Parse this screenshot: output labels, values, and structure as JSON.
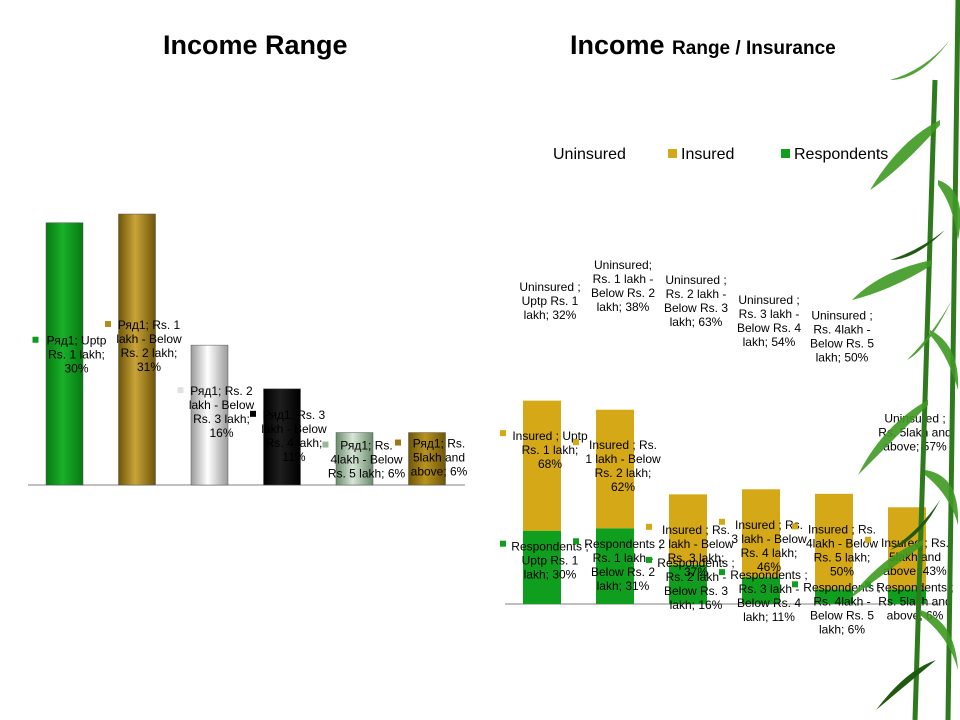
{
  "left_title": "Income Range",
  "right_title_main": "Income",
  "right_title_sub": "Range / Insurance",
  "colors": {
    "green": "#0e9a1c",
    "gold": "#b08d1a",
    "silver": "#d4d4d4",
    "black": "#000000",
    "sage": "#9bb59b",
    "brown": "#9b7a16",
    "uninsured": "#ffffff",
    "insured": "#d4a817",
    "respondents": "#109e1e"
  },
  "legend": [
    {
      "label": "Uninsured",
      "color": "#ffffff"
    },
    {
      "label": "Insured",
      "color": "#d4a817"
    },
    {
      "label": "Respondents",
      "color": "#109e1e"
    }
  ],
  "chart_data": [
    {
      "type": "bar",
      "title": "Income Range",
      "categories": [
        "Uptp Rs. 1 lakh",
        "Rs. 1 lakh - Below Rs. 2 lakh",
        "Rs. 2 lakh - Below Rs. 3 lakh",
        "Rs. 3 lakh - Below Rs. 4 lakh",
        "Rs. 4lakh - Below Rs. 5 lakh",
        "Rs. 5lakh and above"
      ],
      "values": [
        30,
        31,
        16,
        11,
        6,
        6
      ],
      "series": [
        {
          "name": "Ряд1",
          "values": [
            30,
            31,
            16,
            11,
            6,
            6
          ]
        }
      ],
      "data_labels": [
        [
          "Ряд1; Uptp",
          "Rs. 1 lakh;",
          "30%"
        ],
        [
          "Ряд1; Rs. 1",
          "lakh - Below",
          "Rs. 2 lakh;",
          "31%"
        ],
        [
          "Ряд1; Rs. 2",
          "lakh - Below",
          "Rs. 3 lakh;",
          "16%"
        ],
        [
          "Ряд1; Rs. 3",
          "lakh - Below",
          "Rs. 4 lakh;",
          "11%"
        ],
        [
          "Ряд1; Rs.",
          "4lakh - Below",
          "Rs. 5 lakh; 6%"
        ],
        [
          "Ряд1; Rs.",
          "5lakh and",
          "above; 6%"
        ]
      ],
      "ylim": [
        0,
        35
      ],
      "grid": false,
      "legend": "none"
    },
    {
      "type": "bar",
      "stacked": true,
      "title": "Income Range / Insurance",
      "categories": [
        "Uptp Rs. 1 lakh",
        "Rs. 1 lakh - Below Rs. 2 lakh",
        "Rs. 2 lakh - Below Rs. 3 lakh",
        "Rs. 3 lakh - Below Rs. 4 lakh",
        "Rs. 4lakh - Below Rs. 5 lakh",
        "Rs. 5lakh and above"
      ],
      "series": [
        {
          "name": "Respondents",
          "values": [
            30,
            31,
            16,
            11,
            6,
            6
          ]
        },
        {
          "name": "Insured",
          "values": [
            68,
            62,
            37,
            46,
            50,
            43
          ]
        },
        {
          "name": "Uninsured",
          "values": [
            32,
            38,
            63,
            54,
            50,
            57
          ]
        }
      ],
      "data_labels": {
        "Respondents": [
          [
            "Respondents ;",
            "Uptp Rs. 1",
            "lakh; 30%"
          ],
          [
            "Respondents ;",
            "Rs. 1 lakh -",
            "Below Rs. 2",
            "lakh; 31%"
          ],
          [
            "Respondents ;",
            "Rs. 2 lakh -",
            "Below Rs. 3",
            "lakh; 16%"
          ],
          [
            "Respondents ;",
            "Rs. 3 lakh -",
            "Below Rs. 4",
            "lakh; 11%"
          ],
          [
            "Respondents ;",
            "Rs. 4lakh -",
            "Below Rs. 5",
            "lakh; 6%"
          ],
          [
            "Respondents ;",
            "Rs. 5lakh and",
            "above; 6%"
          ]
        ],
        "Insured": [
          [
            "Insured ; Uptp",
            "Rs. 1 lakh;",
            "68%"
          ],
          [
            "Insured ; Rs.",
            "1 lakh - Below",
            "Rs. 2 lakh;",
            "62%"
          ],
          [
            "Insured ; Rs.",
            "2 lakh - Below",
            "Rs. 3 lakh;",
            "37%"
          ],
          [
            "Insured ; Rs.",
            "3 lakh - Below",
            "Rs. 4 lakh;",
            "46%"
          ],
          [
            "Insured ; Rs.",
            "4lakh - Below",
            "Rs. 5 lakh;",
            "50%"
          ],
          [
            "Insured ; Rs.",
            "5lakh and",
            "above; 43%"
          ]
        ],
        "Uninsured": [
          [
            "Uninsured ;",
            "Uptp Rs. 1",
            "lakh; 32%"
          ],
          [
            "Uninsured;",
            "Rs. 1 lakh -",
            "Below Rs. 2",
            "lakh; 38%"
          ],
          [
            "Uninsured ;",
            "Rs. 2 lakh -",
            "Below Rs. 3",
            "lakh; 63%"
          ],
          [
            "Uninsured ;",
            "Rs. 3 lakh -",
            "Below Rs. 4",
            "lakh; 54%"
          ],
          [
            "Uninsured ;",
            "Rs. 4lakh -",
            "Below Rs. 5",
            "lakh; 50%"
          ],
          [
            "Uninsured ;",
            "Rs. 5lakh and",
            "above; 57%"
          ]
        ]
      },
      "legend": "top"
    }
  ]
}
